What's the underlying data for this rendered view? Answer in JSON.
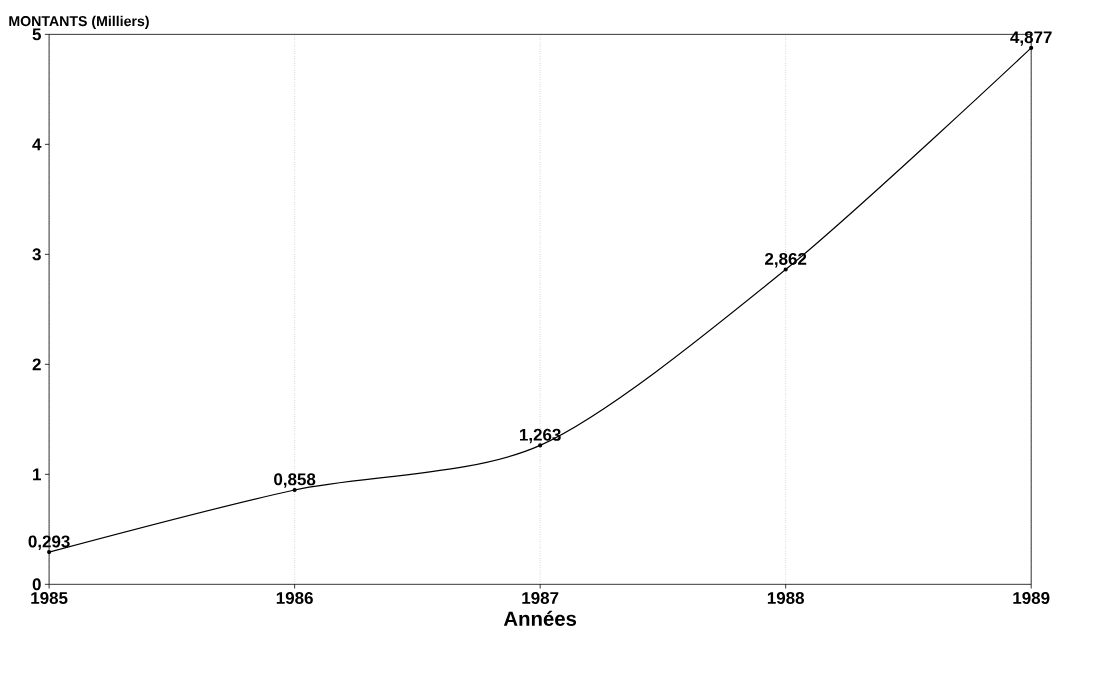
{
  "chart_data": {
    "type": "line",
    "ylabel": "MONTANTS (Milliers)",
    "xlabel": "Années",
    "categories": [
      "1985",
      "1986",
      "1987",
      "1988",
      "1989"
    ],
    "series": [
      {
        "color": "#000000",
        "values": [
          0.293,
          0.858,
          1.263,
          2.862,
          4.877
        ],
        "value_labels": [
          "0,293",
          "0,858",
          "1,263",
          "2,862",
          "4,877"
        ]
      }
    ],
    "ylim": [
      0,
      5
    ],
    "yticks": [
      0,
      1,
      2,
      3,
      4,
      5
    ],
    "grid": "x",
    "marker": "circle",
    "line_style": "solid"
  }
}
